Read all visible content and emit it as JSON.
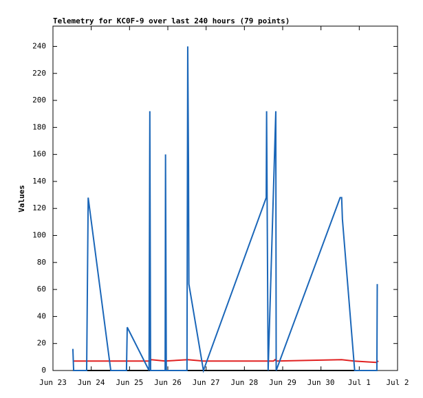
{
  "chart_data": {
    "type": "line",
    "title": "Telemetry for KC0F-9 over last 240 hours (79 points)",
    "ylabel": "Values",
    "xlim": [
      0,
      9
    ],
    "xticks": [
      {
        "value": 0,
        "label": "Jun 23"
      },
      {
        "value": 1,
        "label": "Jun 24"
      },
      {
        "value": 2,
        "label": "Jun 25"
      },
      {
        "value": 3,
        "label": "Jun 26"
      },
      {
        "value": 4,
        "label": "Jun 27"
      },
      {
        "value": 5,
        "label": "Jun 28"
      },
      {
        "value": 6,
        "label": "Jun 29"
      },
      {
        "value": 7,
        "label": "Jun 30"
      },
      {
        "value": 8,
        "label": "Jul 1"
      },
      {
        "value": 9,
        "label": "Jul 2"
      }
    ],
    "ylim": [
      0,
      255
    ],
    "yticks": [
      0,
      20,
      40,
      60,
      80,
      100,
      120,
      140,
      160,
      180,
      200,
      220,
      240
    ],
    "series": [
      {
        "color": "#000000",
        "x": [
          0.52,
          8.47
        ],
        "values": [
          0,
          0
        ]
      },
      {
        "color": "#e02020",
        "x": [
          0.52,
          2.53,
          2.57,
          2.93,
          3.52,
          3.93,
          5.76,
          5.8,
          5.83,
          7.54,
          7.86,
          8.44,
          8.5
        ],
        "values": [
          7,
          7,
          8,
          7,
          8,
          7,
          7,
          8,
          7,
          8,
          7,
          6,
          7
        ]
      },
      {
        "color": "#1a66b8",
        "x": [
          0.52,
          0.54,
          0.88,
          0.9,
          0.92,
          1.51,
          1.92,
          1.94,
          2.51,
          2.53,
          2.55,
          2.93,
          2.94,
          2.96,
          3.5,
          3.52,
          3.54,
          3.55,
          3.93,
          5.57,
          5.58,
          5.6,
          5.62,
          5.82,
          5.83,
          7.5,
          7.54,
          7.56,
          7.88,
          8.46,
          8.47
        ],
        "values": [
          16,
          0,
          0,
          64,
          128,
          0,
          0,
          32,
          0,
          192,
          0,
          0,
          160,
          0,
          0,
          240,
          152,
          64,
          0,
          128,
          192,
          96,
          0,
          192,
          0,
          128,
          128,
          112,
          0,
          0,
          64
        ]
      }
    ]
  }
}
